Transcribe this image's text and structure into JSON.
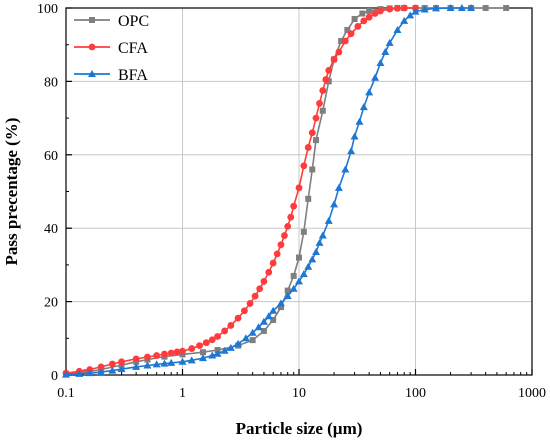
{
  "chart_data": {
    "type": "line",
    "title": "",
    "xlabel": "Particle size (µm)",
    "ylabel": "Pass precentage (%)",
    "x_scale": "log",
    "xlim": [
      0.1,
      1000
    ],
    "ylim": [
      0,
      100
    ],
    "x_ticks": [
      "0.1",
      "1",
      "10",
      "100",
      "1000"
    ],
    "y_ticks": [
      "0",
      "20",
      "40",
      "60",
      "80",
      "100"
    ],
    "grid": true,
    "legend": "top-left",
    "series": [
      {
        "name": "OPC",
        "color": "#7f7f7f",
        "marker": "square",
        "x": [
          0.1,
          0.15,
          0.2,
          0.3,
          0.4,
          0.5,
          0.7,
          1,
          1.5,
          2,
          3,
          4,
          5,
          6,
          7,
          8,
          9,
          10,
          11,
          12,
          13,
          14,
          16,
          18,
          20,
          23,
          26,
          30,
          35,
          40,
          50,
          60,
          70,
          80,
          100,
          120,
          150,
          200,
          300,
          400,
          600
        ],
        "y": [
          0.3,
          0.8,
          1.5,
          2.7,
          3.6,
          4.2,
          5,
          5.6,
          6.2,
          6.8,
          8,
          9.5,
          12,
          15,
          18.5,
          23,
          27,
          32,
          39,
          48,
          56,
          64,
          72,
          80,
          86,
          91,
          94,
          97,
          98.5,
          99.2,
          99.7,
          99.9,
          100,
          100,
          100,
          100,
          100,
          100,
          100,
          100,
          100
        ]
      },
      {
        "name": "CFA",
        "color": "#ff3b3b",
        "marker": "circle",
        "x": [
          0.1,
          0.13,
          0.16,
          0.2,
          0.25,
          0.3,
          0.4,
          0.5,
          0.6,
          0.7,
          0.8,
          0.9,
          1,
          1.2,
          1.4,
          1.6,
          1.8,
          2,
          2.3,
          2.6,
          3,
          3.4,
          3.8,
          4.2,
          4.6,
          5,
          5.5,
          6,
          6.5,
          7,
          7.5,
          8,
          8.5,
          9,
          10,
          11,
          12,
          13,
          14,
          15,
          16,
          17,
          18,
          20,
          22,
          25,
          28,
          32,
          36,
          40,
          45,
          50,
          60,
          70,
          80,
          100
        ],
        "y": [
          0.5,
          1,
          1.5,
          2.2,
          3,
          3.6,
          4.4,
          4.9,
          5.3,
          5.7,
          6,
          6.3,
          6.5,
          7.2,
          8,
          8.8,
          9.6,
          10.5,
          12,
          13.5,
          15.5,
          17.5,
          19.5,
          21.5,
          23.5,
          25.5,
          28,
          30.5,
          33,
          35.5,
          38,
          40.5,
          43,
          46,
          51,
          57,
          62,
          66,
          70,
          74,
          77.5,
          80.5,
          83,
          86,
          88,
          91,
          93,
          95,
          96.5,
          97.5,
          98.5,
          99.2,
          99.7,
          99.9,
          100,
          100
        ]
      },
      {
        "name": "BFA",
        "color": "#1f77d4",
        "marker": "triangle",
        "x": [
          0.1,
          0.13,
          0.16,
          0.2,
          0.25,
          0.3,
          0.4,
          0.5,
          0.6,
          0.7,
          0.8,
          1,
          1.2,
          1.5,
          1.8,
          2,
          2.3,
          2.6,
          3,
          3.5,
          4,
          4.5,
          5,
          5.5,
          6,
          7,
          8,
          9,
          10,
          11,
          12,
          13,
          14,
          15,
          16,
          18,
          20,
          22,
          25,
          28,
          30,
          33,
          36,
          40,
          45,
          50,
          55,
          60,
          70,
          80,
          90,
          100,
          120,
          150,
          200,
          250,
          300
        ],
        "y": [
          0.1,
          0.3,
          0.5,
          0.8,
          1.2,
          1.6,
          2.2,
          2.6,
          2.9,
          3.1,
          3.3,
          3.6,
          4,
          4.6,
          5.3,
          5.8,
          6.6,
          7.4,
          8.5,
          10,
          11.5,
          13,
          14.5,
          16,
          17.5,
          19.5,
          21.5,
          23.5,
          25.5,
          27.5,
          29.5,
          31.5,
          33.5,
          36,
          38,
          42,
          46.5,
          51,
          56,
          61,
          65,
          69,
          73,
          77,
          81,
          85,
          88,
          90.5,
          94,
          96.5,
          98,
          99,
          99.6,
          99.9,
          100,
          100,
          100
        ]
      }
    ]
  }
}
